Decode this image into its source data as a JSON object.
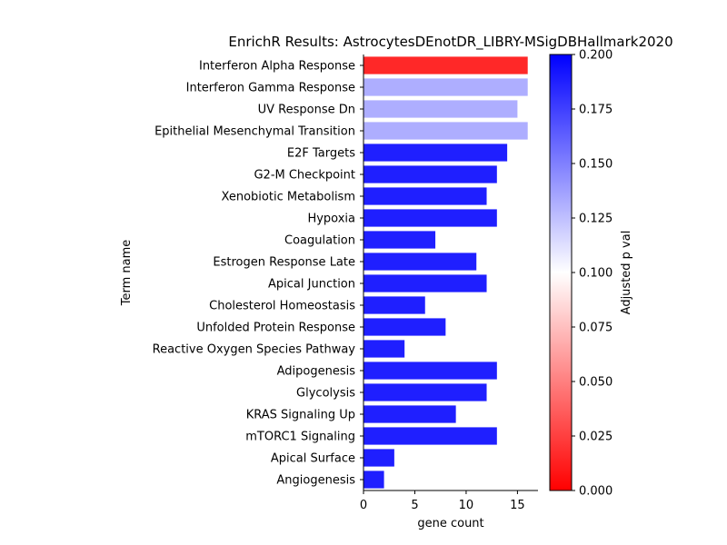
{
  "chart_data": {
    "type": "bar",
    "orientation": "horizontal",
    "title": "EnrichR Results: AstrocytesDEnotDR_LIBRY-MSigDBHallmark2020",
    "xlabel": "gene count",
    "ylabel": "Term name",
    "xlim": [
      0,
      17
    ],
    "x_ticks": [
      0,
      5,
      10,
      15
    ],
    "grid": false,
    "categories": [
      "Interferon Alpha Response",
      "Interferon Gamma Response",
      "UV Response Dn",
      "Epithelial Mesenchymal Transition",
      "E2F Targets",
      "G2-M Checkpoint",
      "Xenobiotic Metabolism",
      "Hypoxia",
      "Coagulation",
      "Estrogen Response Late",
      "Apical Junction",
      "Cholesterol Homeostasis",
      "Unfolded Protein Response",
      "Reactive Oxygen Species Pathway",
      "Adipogenesis",
      "Glycolysis",
      "KRAS Signaling Up",
      "mTORC1 Signaling",
      "Apical Surface",
      "Angiogenesis"
    ],
    "values": [
      16,
      16,
      15,
      16,
      14,
      13,
      12,
      13,
      7,
      11,
      12,
      6,
      8,
      4,
      13,
      12,
      9,
      13,
      3,
      2
    ],
    "adjusted_p_values": [
      0.004,
      0.136,
      0.136,
      0.136,
      0.2,
      0.2,
      0.2,
      0.2,
      0.2,
      0.2,
      0.2,
      0.2,
      0.2,
      0.2,
      0.2,
      0.2,
      0.2,
      0.2,
      0.2,
      0.2
    ],
    "colorbar": {
      "label": "Adjusted p val",
      "range": [
        0,
        0.2
      ],
      "ticks": [
        "0.000",
        "0.025",
        "0.050",
        "0.075",
        "0.100",
        "0.125",
        "0.150",
        "0.175",
        "0.200"
      ],
      "colors": [
        "#ff0000",
        "#ffffff",
        "#0000ff"
      ]
    }
  }
}
